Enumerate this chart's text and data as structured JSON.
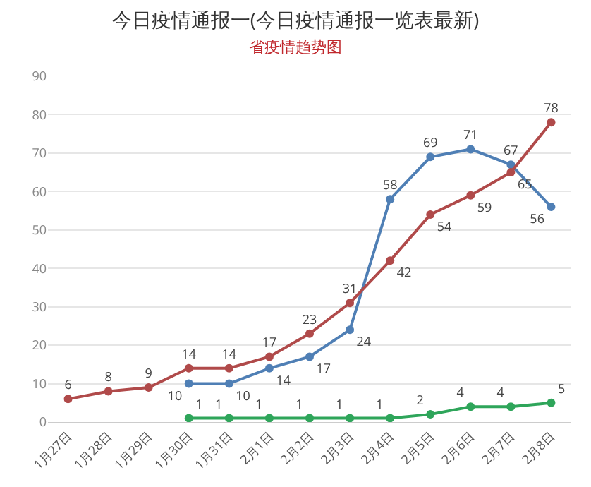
{
  "chart_data": {
    "type": "line",
    "title": "今日疫情通报一(今日疫情通报一览表最新)",
    "subtitle": "省疫情趋势图",
    "categories": [
      "1月27日",
      "1月28日",
      "1月29日",
      "1月30日",
      "1月31日",
      "2月1日",
      "2月2日",
      "2月3日",
      "2月4日",
      "2月5日",
      "2月6日",
      "2月7日",
      "2月8日"
    ],
    "series": [
      {
        "color": "#4f7fb5",
        "values": [
          null,
          null,
          null,
          10,
          10,
          14,
          17,
          24,
          58,
          69,
          71,
          67,
          56
        ]
      },
      {
        "color": "#b04a4a",
        "values": [
          6,
          8,
          9,
          14,
          14,
          17,
          23,
          31,
          42,
          54,
          59,
          65,
          78
        ]
      },
      {
        "color": "#2ea55a",
        "values": [
          null,
          null,
          null,
          1,
          1,
          1,
          1,
          1,
          1,
          2,
          4,
          4,
          5
        ]
      }
    ],
    "ylim": [
      0,
      90
    ],
    "yticks": [
      0,
      10,
      20,
      30,
      40,
      50,
      60,
      70,
      80,
      90
    ],
    "grid": "y",
    "marker": "circle",
    "line_style": "solid",
    "data_labels": true,
    "legend": false
  }
}
